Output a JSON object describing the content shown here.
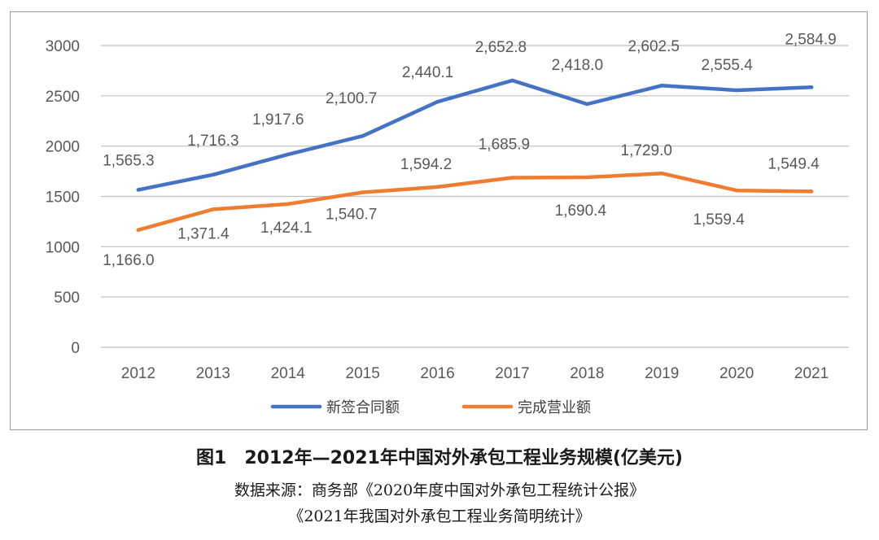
{
  "chart_data": {
    "type": "line",
    "categories": [
      "2012",
      "2013",
      "2014",
      "2015",
      "2016",
      "2017",
      "2018",
      "2019",
      "2020",
      "2021"
    ],
    "x": [
      2012,
      2013,
      2014,
      2015,
      2016,
      2017,
      2018,
      2019,
      2020,
      2021
    ],
    "series": [
      {
        "name": "新签合同额",
        "color": "#4472c4",
        "values": [
          1565.3,
          1716.3,
          1917.6,
          2100.7,
          2440.1,
          2652.8,
          2418.0,
          2602.5,
          2555.4,
          2584.9
        ],
        "labels": [
          "1,565.3",
          "1,716.3",
          "1,917.6",
          "2,100.7",
          "2,440.1",
          "2,652.8",
          "2,418.0",
          "2,602.5",
          "2,555.4",
          "2,584.9"
        ]
      },
      {
        "name": "完成营业额",
        "color": "#ed7d31",
        "values": [
          1166.0,
          1371.4,
          1424.1,
          1540.7,
          1594.2,
          1685.9,
          1690.4,
          1729.0,
          1559.4,
          1549.4
        ],
        "labels": [
          "1,166.0",
          "1,371.4",
          "1,424.1",
          "1,540.7",
          "1,594.2",
          "1,685.9",
          "1,690.4",
          "1,729.0",
          "1,559.4",
          "1,549.4"
        ]
      }
    ],
    "yticks": [
      "0",
      "500",
      "1000",
      "1500",
      "2000",
      "2500",
      "3000"
    ],
    "ylim": [
      0,
      3000
    ],
    "grid": true,
    "legend_position": "bottom"
  },
  "caption": {
    "title": "图1　2012年—2021年中国对外承包工程业务规模(亿美元)",
    "source_line1": "数据来源：商务部《2020年度中国对外承包工程统计公报》",
    "source_line2": "《2021年我国对外承包工程业务简明统计》"
  }
}
